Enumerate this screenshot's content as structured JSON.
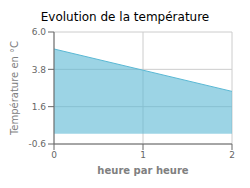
{
  "chart_data": {
    "type": "area",
    "title": "Evolution de la température",
    "xlabel": "heure par heure",
    "ylabel": "Température en °C",
    "x": [
      0,
      2
    ],
    "values": [
      5.0,
      2.5
    ],
    "color": "#5ab8d4",
    "xlim": [
      0,
      2
    ],
    "xticks": [
      0,
      1,
      2
    ],
    "ylim": [
      -0.6,
      6.0
    ],
    "yticks": [
      -0.6,
      1.6,
      3.8,
      {
        "value": 6.0,
        "label": "6.0"
      }
    ],
    "grid": true
  }
}
